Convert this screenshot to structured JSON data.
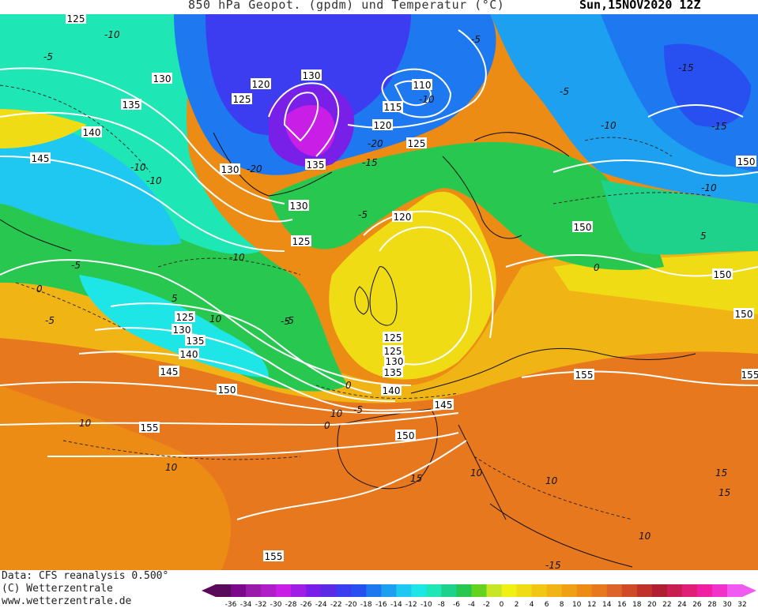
{
  "header": {
    "title": "850 hPa Geopot. (gpdm) und Temperatur (°C)",
    "datetime": "Sun,15NOV2020 12Z"
  },
  "footer": {
    "data_source": "Data: CFS reanalysis 0.500°",
    "copyright": "(C) Wetterzentrale",
    "website": "www.wetterzentrale.de"
  },
  "legend": {
    "ticks": [
      "-36",
      "-34",
      "-32",
      "-30",
      "-28",
      "-26",
      "-24",
      "-22",
      "-20",
      "-18",
      "-16",
      "-14",
      "-12",
      "-10",
      "-8",
      "-6",
      "-4",
      "-2",
      "0",
      "2",
      "4",
      "6",
      "8",
      "10",
      "12",
      "14",
      "16",
      "18",
      "20",
      "22",
      "24",
      "26",
      "28",
      "30",
      "32"
    ],
    "colors": [
      "#5a0a5a",
      "#7a0a8a",
      "#9a1aaa",
      "#b01ec8",
      "#c81ee6",
      "#a01ee6",
      "#7820e8",
      "#5a2ae6",
      "#3c3cf0",
      "#2850f0",
      "#1e78f0",
      "#1ea0f0",
      "#1ec8f0",
      "#1ee6e6",
      "#1ee6b4",
      "#1ed28c",
      "#28c850",
      "#64d21e",
      "#c8e628",
      "#f0f014",
      "#f0dc14",
      "#f0c814",
      "#f0b414",
      "#f0a014",
      "#ec8c14",
      "#e8781e",
      "#dc6428",
      "#d04a28",
      "#c03228",
      "#b01e32",
      "#c81e50",
      "#e01e78",
      "#f01ea0",
      "#f032c8",
      "#f05af0"
    ]
  },
  "map": {
    "geopotential_labels": [
      "125",
      "130",
      "135",
      "140",
      "145",
      "130",
      "120",
      "125",
      "130",
      "110",
      "115",
      "120",
      "125",
      "135",
      "130",
      "125",
      "125",
      "120",
      "150",
      "150",
      "150",
      "150",
      "125",
      "130",
      "135",
      "140",
      "145",
      "150",
      "125",
      "130",
      "135",
      "140",
      "145",
      "150",
      "155",
      "155",
      "155",
      "155",
      "150",
      "150"
    ],
    "temperature_labels": [
      "-10",
      "-5",
      "-5",
      "-10",
      "-15",
      "-20",
      "-20",
      "-10",
      "-5",
      "-10",
      "-15",
      "-15",
      "-5",
      "-5",
      "-10",
      "-10",
      "5",
      "0",
      "-5",
      "-5",
      "0",
      "-5",
      "0",
      "5",
      "10",
      "10",
      "10",
      "10",
      "15",
      "10",
      "10",
      "15",
      "10",
      "15",
      "-15",
      "-10",
      "-5",
      "0"
    ]
  }
}
